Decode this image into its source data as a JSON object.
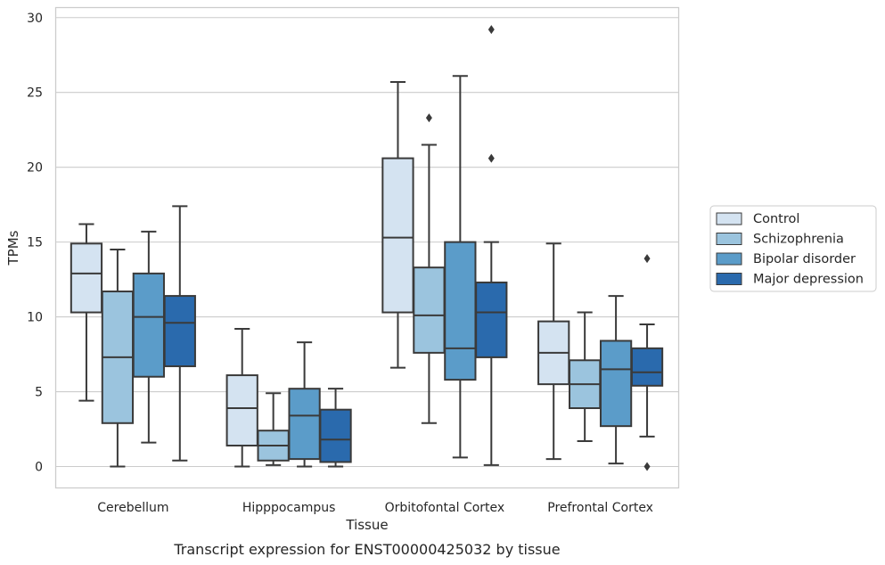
{
  "chart_data": {
    "type": "boxplot",
    "xlabel": "Tissue",
    "ylabel": "TPMs",
    "caption": "Transcript expression for ENST00000425032 by tissue",
    "ylim": [
      -1.4,
      30.7
    ],
    "yticks": [
      0,
      5,
      10,
      15,
      20,
      25,
      30
    ],
    "grid": "horizontal",
    "legend_position": "right",
    "categories": [
      "Cerebellum",
      "Hipppocampus",
      "Orbitofontal Cortex",
      "Prefrontal Cortex"
    ],
    "series": [
      {
        "name": "Control",
        "color": "#d4e3f1",
        "boxes": [
          {
            "whislo": 4.4,
            "q1": 10.3,
            "med": 12.9,
            "q3": 14.9,
            "whishi": 16.2,
            "fliers": []
          },
          {
            "whislo": 0.0,
            "q1": 1.4,
            "med": 3.9,
            "q3": 6.1,
            "whishi": 9.2,
            "fliers": []
          },
          {
            "whislo": 6.6,
            "q1": 10.3,
            "med": 15.3,
            "q3": 20.6,
            "whishi": 25.7,
            "fliers": []
          },
          {
            "whislo": 0.5,
            "q1": 5.5,
            "med": 7.6,
            "q3": 9.7,
            "whishi": 14.9,
            "fliers": []
          }
        ]
      },
      {
        "name": "Schizophrenia",
        "color": "#9bc4de",
        "boxes": [
          {
            "whislo": 0.0,
            "q1": 2.9,
            "med": 7.3,
            "q3": 11.7,
            "whishi": 14.5,
            "fliers": []
          },
          {
            "whislo": 0.1,
            "q1": 0.4,
            "med": 1.4,
            "q3": 2.4,
            "whishi": 4.9,
            "fliers": []
          },
          {
            "whislo": 2.9,
            "q1": 7.6,
            "med": 10.1,
            "q3": 13.3,
            "whishi": 21.5,
            "fliers": [
              23.3
            ]
          },
          {
            "whislo": 1.7,
            "q1": 3.9,
            "med": 5.5,
            "q3": 7.1,
            "whishi": 10.3,
            "fliers": []
          }
        ]
      },
      {
        "name": "Bipolar disorder",
        "color": "#5b9cc9",
        "boxes": [
          {
            "whislo": 1.6,
            "q1": 6.0,
            "med": 10.0,
            "q3": 12.9,
            "whishi": 15.7,
            "fliers": []
          },
          {
            "whislo": 0.0,
            "q1": 0.5,
            "med": 3.4,
            "q3": 5.2,
            "whishi": 8.3,
            "fliers": []
          },
          {
            "whislo": 0.6,
            "q1": 5.8,
            "med": 7.9,
            "q3": 15.0,
            "whishi": 26.1,
            "fliers": []
          },
          {
            "whislo": 0.2,
            "q1": 2.7,
            "med": 6.5,
            "q3": 8.4,
            "whishi": 11.4,
            "fliers": []
          }
        ]
      },
      {
        "name": "Major depression",
        "color": "#2a6aad",
        "boxes": [
          {
            "whislo": 0.4,
            "q1": 6.7,
            "med": 9.6,
            "q3": 11.4,
            "whishi": 17.4,
            "fliers": []
          },
          {
            "whislo": 0.0,
            "q1": 0.3,
            "med": 1.8,
            "q3": 3.8,
            "whishi": 5.2,
            "fliers": []
          },
          {
            "whislo": 0.1,
            "q1": 7.3,
            "med": 10.3,
            "q3": 12.3,
            "whishi": 15.0,
            "fliers": [
              20.6,
              29.2
            ]
          },
          {
            "whislo": 2.0,
            "q1": 5.4,
            "med": 6.3,
            "q3": 7.9,
            "whishi": 9.5,
            "fliers": [
              0.0,
              13.9
            ]
          }
        ]
      }
    ]
  }
}
